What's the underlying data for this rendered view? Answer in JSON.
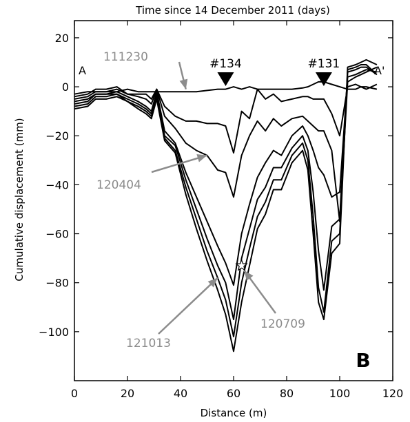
{
  "chart_data": {
    "type": "line",
    "title": "Time since 14 December 2011 (days)",
    "xlabel": "Distance (m)",
    "ylabel": "Cumulative displacement (mm)",
    "xlim": [
      0,
      120
    ],
    "ylim": [
      -120,
      27
    ],
    "xticks": [
      0,
      20,
      40,
      60,
      80,
      100,
      120
    ],
    "yticks": [
      20,
      0,
      -20,
      -40,
      -60,
      -80,
      -100
    ],
    "ytick_labels": [
      "20",
      "0",
      "−20",
      "−40",
      "−60",
      "−80",
      "−100"
    ],
    "grid": false,
    "panel_label": "B",
    "profile_start": "A",
    "profile_end": "A'",
    "markers": [
      {
        "label": "#134",
        "x": 57
      },
      {
        "label": "#131",
        "x": 94
      }
    ],
    "annotations": [
      {
        "text": "111230",
        "target": [
          42,
          -1
        ]
      },
      {
        "text": "120404",
        "target": [
          50,
          -28
        ]
      },
      {
        "text": "121013",
        "target": [
          54,
          -78
        ]
      },
      {
        "text": "120709",
        "target": [
          64,
          -75
        ]
      }
    ],
    "star": [
      63,
      -73
    ],
    "x": [
      0,
      5,
      8,
      12,
      16,
      20,
      24,
      27,
      29,
      31,
      34,
      38,
      42,
      46,
      50,
      54,
      57,
      60,
      63,
      66,
      69,
      72,
      75,
      78,
      82,
      86,
      88,
      90,
      92,
      94,
      97,
      100,
      103,
      106,
      108,
      110,
      114
    ],
    "series": [
      {
        "values": [
          -3,
          -2,
          -2,
          -2,
          -2,
          -1,
          -2,
          -2,
          -2,
          -2,
          -2,
          -2,
          -2,
          -2,
          -1.5,
          -1,
          -1,
          0,
          -1,
          0,
          -1,
          -1,
          -1,
          -1,
          -1,
          -0.5,
          0,
          1,
          2,
          2,
          1,
          0,
          -1,
          -1,
          0,
          0,
          -1
        ]
      },
      {
        "values": [
          -4,
          -3,
          -1,
          -1,
          0,
          -3,
          -3,
          -3,
          -5,
          -1,
          -8,
          -12,
          -14,
          -14,
          -15,
          -15,
          -16,
          -27,
          -10,
          -13,
          -1,
          -5,
          -3,
          -6,
          -5,
          -4,
          -4,
          -5,
          -5,
          -5,
          -11,
          -20,
          0,
          1,
          0,
          -1,
          1
        ]
      },
      {
        "values": [
          -5,
          -4,
          -2,
          -2,
          -1,
          -3,
          -4,
          -5,
          -7,
          -1,
          -12,
          -17,
          -23,
          -26,
          -28,
          -34,
          -35,
          -45,
          -28,
          -20,
          -14,
          -18,
          -13,
          -16,
          -13,
          -12,
          -14,
          -16,
          -18,
          -18,
          -26,
          -55,
          2,
          4,
          5,
          6,
          8
        ]
      },
      {
        "values": [
          -6,
          -5,
          -3,
          -3,
          -2,
          -4,
          -6,
          -8,
          -10,
          -2,
          -18,
          -23,
          -35,
          -45,
          -55,
          -65,
          -72,
          -81,
          -60,
          -48,
          -37,
          -31,
          -26,
          -28,
          -20,
          -16,
          -20,
          -26,
          -33,
          -36,
          -45,
          -43,
          4,
          5,
          6,
          7,
          6
        ]
      },
      {
        "values": [
          -7,
          -6,
          -3,
          -3,
          -3,
          -5,
          -7,
          -9,
          -11,
          -3,
          -20,
          -24,
          -38,
          -50,
          -62,
          -73,
          -80,
          -95,
          -70,
          -58,
          -46,
          -41,
          -33,
          -33,
          -25,
          -20,
          -26,
          -43,
          -67,
          -83,
          -57,
          -54,
          6,
          7,
          8,
          8,
          5
        ]
      },
      {
        "values": [
          -8,
          -7,
          -4,
          -4,
          -3,
          -6,
          -8,
          -10,
          -12,
          -4,
          -21,
          -26,
          -41,
          -54,
          -67,
          -78,
          -87,
          -102,
          -80,
          -66,
          -53,
          -47,
          -38,
          -38,
          -28,
          -23,
          -30,
          -53,
          -82,
          -92,
          -63,
          -60,
          7,
          8,
          9,
          9,
          5
        ]
      },
      {
        "values": [
          -9,
          -8,
          -5,
          -5,
          -4,
          -6,
          -9,
          -11,
          -13,
          -5,
          -22,
          -27,
          -44,
          -58,
          -71,
          -83,
          -93,
          -108,
          -88,
          -73,
          -58,
          -52,
          -42,
          -42,
          -31,
          -26,
          -34,
          -60,
          -88,
          -95,
          -68,
          -64,
          8,
          9,
          10,
          11,
          9
        ]
      }
    ]
  }
}
